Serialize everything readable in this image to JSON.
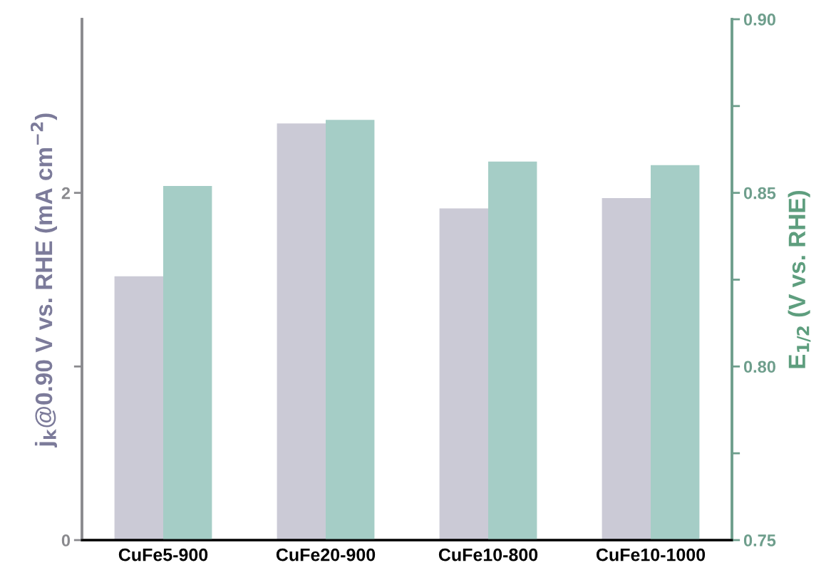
{
  "chart_data": {
    "type": "bar",
    "categories": [
      "CuFe5-900",
      "CuFe20-900",
      "CuFe10-800",
      "CuFe10-1000"
    ],
    "series": [
      {
        "color": "#cbcad6",
        "values": [
          1.52,
          2.4,
          1.91,
          1.97
        ]
      },
      {
        "color": "#a5cdc6",
        "values": [
          0.852,
          0.871,
          0.859,
          0.858
        ],
        "axis": "y2"
      }
    ],
    "ylabel": "j$_{k}$@0.90 V vs. RHE (mA cm$^{−2}$)",
    "y2label": "E$_{1/2}$ (V vs. RHE)",
    "ylim": [
      0,
      3
    ],
    "yticks": [
      0,
      {
        "value": 1,
        "label": null
      },
      2
    ],
    "y2lim": [
      0.75,
      0.9
    ],
    "y2ticks": [
      0.75,
      {
        "value": 0.775,
        "label": null
      },
      {
        "value": 0.8,
        "label": "0.80"
      },
      {
        "value": 0.825,
        "label": null
      },
      0.85,
      {
        "value": 0.875,
        "label": null
      },
      {
        "value": 0.9,
        "label": "0.90"
      }
    ],
    "grid": false,
    "legend": false
  }
}
